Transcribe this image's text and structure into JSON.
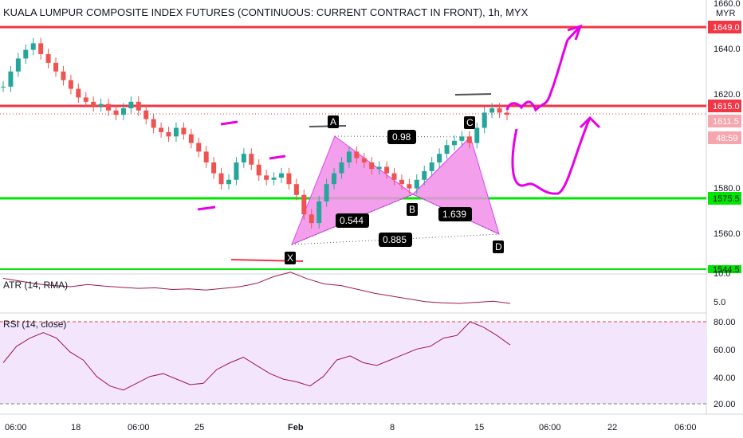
{
  "header": {
    "title": "KUALA LUMPUR COMPOSITE INDEX FUTURES (CONTINUOUS: CURRENT CONTRACT IN FRONT), 1h, MYX"
  },
  "price_axis": {
    "currency": "MYR",
    "ticks": [
      "1660.0",
      "1640.0",
      "1620.0",
      "1580.0",
      "1560.0"
    ],
    "level_tags": [
      {
        "text": "1649.0",
        "bg": "#f23645",
        "fg": "#ffffff"
      },
      {
        "text": "1615.0",
        "bg": "#f23645",
        "fg": "#ffffff"
      },
      {
        "text": "1611.5",
        "bg": "#f6a6ad",
        "fg": "#ffffff"
      },
      {
        "text": "48:59",
        "bg": "#f6a6ad",
        "fg": "#ffffff"
      },
      {
        "text": "1575.5",
        "bg": "#00e600",
        "fg": "#131722"
      },
      {
        "text": "1544.5",
        "bg": "#00e600",
        "fg": "#131722"
      }
    ]
  },
  "atr": {
    "label": "ATR (14, RMA)",
    "ticks": [
      "10.0",
      "5.0"
    ]
  },
  "rsi": {
    "label": "RSI (14, close)",
    "ticks": [
      "80.00",
      "60.00",
      "40.00",
      "20.00"
    ]
  },
  "time_axis": {
    "labels": [
      "06:00",
      "18",
      "06:00",
      "25",
      "Feb",
      "8",
      "15",
      "06:00",
      "22",
      "06:00"
    ]
  },
  "pattern": {
    "points": [
      "X",
      "A",
      "B",
      "C",
      "D"
    ],
    "ratios": [
      "0.98",
      "0.544",
      "1.639",
      "0.885"
    ]
  },
  "colors": {
    "support": "#00e600",
    "resistance": "#f23645",
    "pattern_fill": "#f28ee8",
    "drawing": "#e600e6",
    "indicator": "#a0174e",
    "up": "#26a69a",
    "down": "#ef5350"
  },
  "chart_data": {
    "type": "candlestick",
    "title": "KUALA LUMPUR COMPOSITE INDEX FUTURES (CONTINUOUS: CURRENT CONTRACT IN FRONT), 1h, MYX",
    "ylim": [
      1540,
      1665
    ],
    "x_tick_labels": [
      "06:00",
      "18",
      "06:00",
      "25",
      "Feb",
      "8",
      "15",
      "06:00",
      "22",
      "06:00"
    ],
    "close_series": [
      1625,
      1632,
      1638,
      1642,
      1645,
      1640,
      1636,
      1632,
      1628,
      1624,
      1620,
      1618,
      1616,
      1617,
      1614,
      1612,
      1615,
      1618,
      1614,
      1610,
      1606,
      1604,
      1602,
      1606,
      1603,
      1599,
      1595,
      1590,
      1585,
      1580,
      1582,
      1590,
      1594,
      1589,
      1584,
      1582,
      1583,
      1585,
      1580,
      1575,
      1566,
      1562,
      1572,
      1580,
      1585,
      1590,
      1595,
      1592,
      1590,
      1587,
      1588,
      1585,
      1582,
      1580,
      1578,
      1582,
      1586,
      1590,
      1594,
      1598,
      1600,
      1602,
      1599,
      1606,
      1613,
      1615,
      1613,
      1612
    ],
    "horizontal_levels": [
      1649.0,
      1615.0,
      1575.5,
      1544.5
    ],
    "last_price": 1611.5,
    "pattern_points": {
      "X": 1556,
      "A": 1601,
      "B": 1576,
      "C": 1600,
      "D": 1560
    },
    "atr_series": [
      9.5,
      9,
      8.5,
      8.2,
      8,
      8.4,
      8.1,
      7.9,
      7.7,
      7.8,
      7.5,
      7.6,
      7.4,
      7.7,
      8,
      8.6,
      9.8,
      10.6,
      9.4,
      8.5,
      8.2,
      7.5,
      6.8,
      6.3,
      5.8,
      5.3,
      5.1,
      5.0,
      5.2,
      5.4,
      5.0
    ],
    "rsi_series": [
      50,
      62,
      68,
      72,
      68,
      58,
      52,
      40,
      33,
      30,
      35,
      40,
      42,
      38,
      34,
      35,
      45,
      50,
      54,
      48,
      42,
      38,
      36,
      33,
      40,
      52,
      55,
      50,
      48,
      52,
      56,
      60,
      62,
      68,
      70,
      80,
      76,
      70,
      63
    ]
  }
}
